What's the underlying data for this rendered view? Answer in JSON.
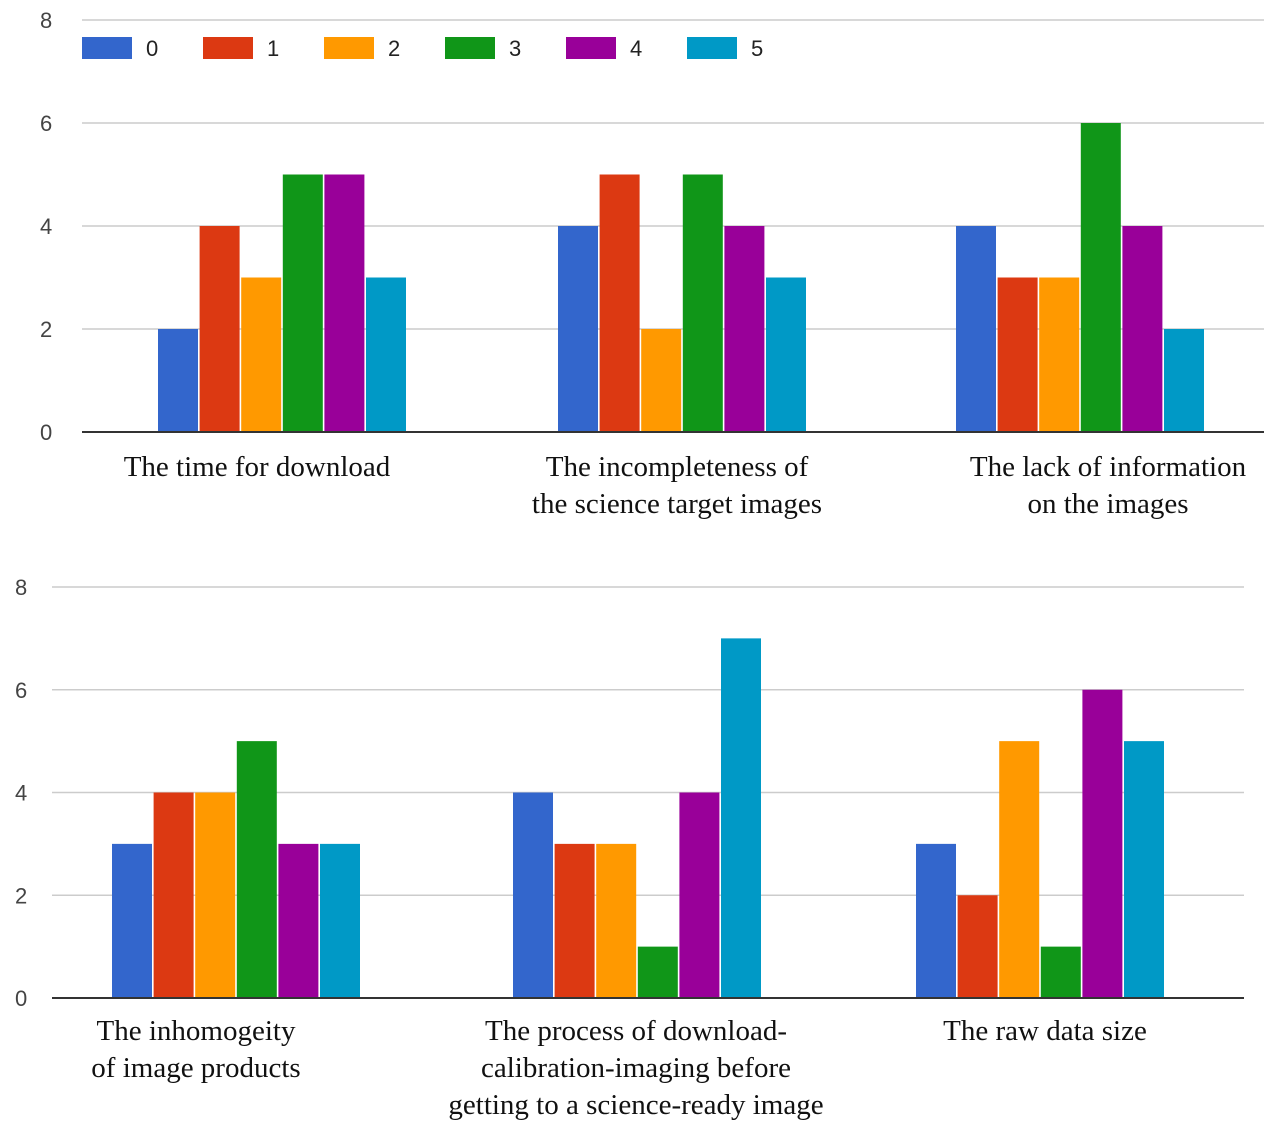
{
  "chart_data": [
    {
      "type": "bar",
      "categories": [
        [
          "The time for download"
        ],
        [
          "The incompleteness of",
          "the science target images"
        ],
        [
          "The lack of information",
          "on the images"
        ]
      ],
      "series": [
        {
          "name": "0",
          "color": "#3366cc",
          "values": [
            2,
            4,
            4
          ]
        },
        {
          "name": "1",
          "color": "#dc3912",
          "values": [
            4,
            5,
            3
          ]
        },
        {
          "name": "2",
          "color": "#ff9900",
          "values": [
            3,
            2,
            3
          ]
        },
        {
          "name": "3",
          "color": "#109618",
          "values": [
            5,
            5,
            6
          ]
        },
        {
          "name": "4",
          "color": "#990099",
          "values": [
            5,
            4,
            4
          ]
        },
        {
          "name": "5",
          "color": "#0099c6",
          "values": [
            3,
            3,
            2
          ]
        }
      ],
      "y_ticks": [
        "0",
        "2",
        "4",
        "6",
        "8"
      ],
      "ylim": [
        0,
        8
      ],
      "grid": true,
      "legend": "top-left"
    },
    {
      "type": "bar",
      "categories": [
        [
          "The inhomogeity",
          "of image products"
        ],
        [
          "The process of download-",
          "calibration-imaging before",
          "getting to a science-ready image"
        ],
        [
          "The raw data size"
        ]
      ],
      "series": [
        {
          "name": "0",
          "color": "#3366cc",
          "values": [
            3,
            4,
            3
          ]
        },
        {
          "name": "1",
          "color": "#dc3912",
          "values": [
            4,
            3,
            2
          ]
        },
        {
          "name": "2",
          "color": "#ff9900",
          "values": [
            4,
            3,
            5
          ]
        },
        {
          "name": "3",
          "color": "#109618",
          "values": [
            5,
            1,
            1
          ]
        },
        {
          "name": "4",
          "color": "#990099",
          "values": [
            3,
            4,
            6
          ]
        },
        {
          "name": "5",
          "color": "#0099c6",
          "values": [
            3,
            7,
            5
          ]
        }
      ],
      "y_ticks": [
        "0",
        "2",
        "4",
        "6",
        "8"
      ],
      "ylim": [
        0,
        8
      ],
      "grid": true,
      "legend": "none"
    }
  ]
}
